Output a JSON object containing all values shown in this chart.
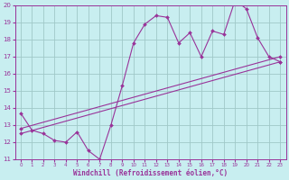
{
  "background_color": "#c8eef0",
  "grid_color": "#a0c8c8",
  "line_color": "#993399",
  "marker_color": "#993399",
  "xlabel": "Windchill (Refroidissement éolien,°C)",
  "xlim": [
    -0.5,
    23.5
  ],
  "ylim": [
    11,
    20
  ],
  "yticks": [
    11,
    12,
    13,
    14,
    15,
    16,
    17,
    18,
    19,
    20
  ],
  "xticks": [
    0,
    1,
    2,
    3,
    4,
    5,
    6,
    7,
    8,
    9,
    10,
    11,
    12,
    13,
    14,
    15,
    16,
    17,
    18,
    19,
    20,
    21,
    22,
    23
  ],
  "series1_x": [
    0,
    1,
    2,
    3,
    4,
    5,
    6,
    7,
    8,
    9,
    10,
    11,
    12,
    13,
    14,
    15,
    16,
    17,
    18,
    19,
    20,
    21,
    22,
    23
  ],
  "series1_y": [
    13.7,
    12.7,
    12.5,
    12.1,
    12.0,
    12.6,
    11.5,
    11.0,
    13.0,
    15.3,
    17.8,
    18.9,
    19.4,
    19.3,
    17.8,
    18.4,
    17.0,
    18.5,
    18.3,
    20.3,
    19.8,
    18.1,
    17.0,
    16.7
  ],
  "series2_x": [
    0,
    23
  ],
  "series2_y": [
    12.8,
    17.0
  ],
  "series3_x": [
    0,
    23
  ],
  "series3_y": [
    12.5,
    16.7
  ]
}
